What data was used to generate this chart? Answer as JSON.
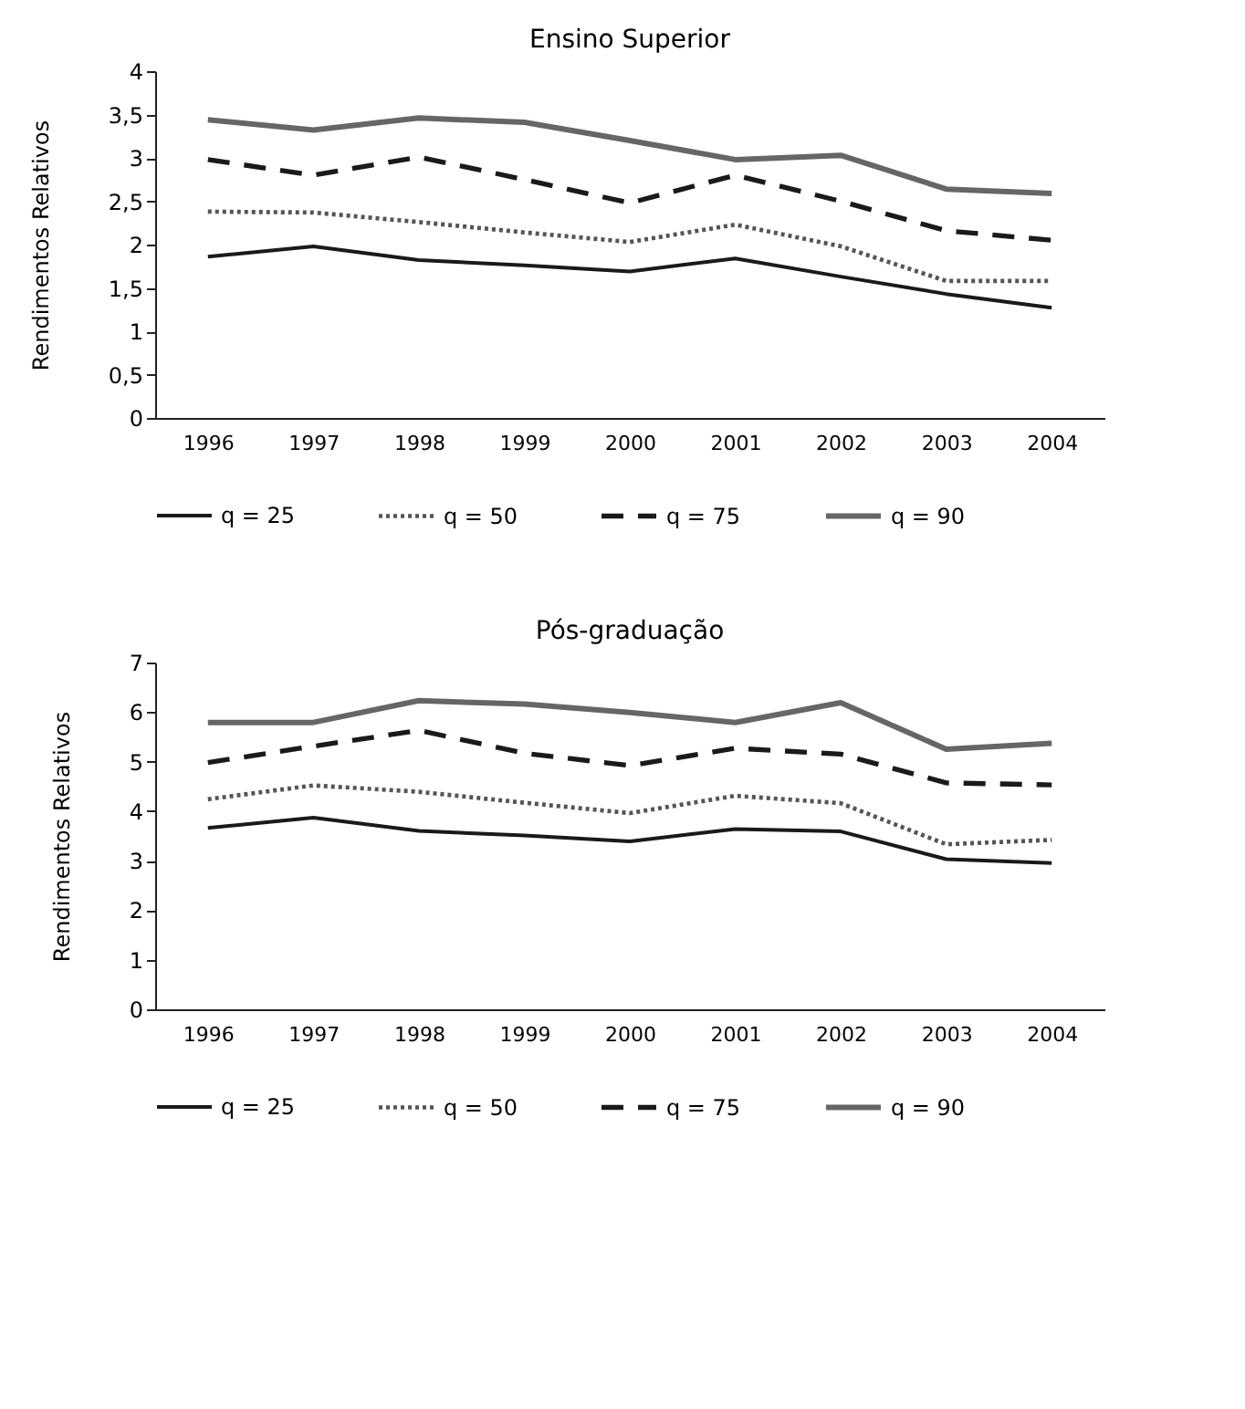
{
  "chart_data": [
    {
      "type": "line",
      "title": "Ensino Superior",
      "ylabel": "Rendimentos Relativos",
      "categories": [
        "1996",
        "1997",
        "1998",
        "1999",
        "2000",
        "2001",
        "2002",
        "2003",
        "2004"
      ],
      "ylim": [
        0,
        4
      ],
      "yticks": [
        0,
        {
          "value": 0.5,
          "label": "0,5"
        },
        1,
        {
          "value": 1.5,
          "label": "1,5"
        },
        2,
        {
          "value": 2.5,
          "label": "2,5"
        },
        3,
        {
          "value": 3.5,
          "label": "3,5"
        },
        4
      ],
      "legend": "bottom",
      "series": [
        {
          "name": "q = 25",
          "color": "#1a1a1a",
          "line_style": "solid",
          "values": [
            1.86,
            1.98,
            1.82,
            1.76,
            1.69,
            1.84,
            1.63,
            1.43,
            1.27
          ]
        },
        {
          "name": "q = 50",
          "color": "#555555",
          "line_style": "dotted",
          "values": [
            2.38,
            2.37,
            2.26,
            2.14,
            2.03,
            2.23,
            1.98,
            1.58,
            1.58
          ]
        },
        {
          "name": "q = 75",
          "color": "#1a1a1a",
          "line_style": "dashed",
          "values": [
            2.98,
            2.8,
            3.01,
            2.75,
            2.48,
            2.8,
            2.5,
            2.16,
            2.05
          ]
        },
        {
          "name": "q = 90",
          "color": "#666666",
          "line_style": "solid",
          "values": [
            3.44,
            3.32,
            3.46,
            3.41,
            3.2,
            2.98,
            3.03,
            2.64,
            2.59
          ]
        }
      ]
    },
    {
      "type": "line",
      "title": "Pós-graduação",
      "ylabel": "Rendimentos Relativos",
      "categories": [
        "1996",
        "1997",
        "1998",
        "1999",
        "2000",
        "2001",
        "2002",
        "2003",
        "2004"
      ],
      "ylim": [
        0,
        7
      ],
      "yticks": [
        0,
        1,
        2,
        3,
        4,
        5,
        6,
        7
      ],
      "legend": "bottom",
      "series": [
        {
          "name": "q = 25",
          "color": "#1a1a1a",
          "line_style": "solid",
          "values": [
            3.66,
            3.87,
            3.6,
            3.51,
            3.39,
            3.64,
            3.59,
            3.03,
            2.95
          ]
        },
        {
          "name": "q = 50",
          "color": "#555555",
          "line_style": "dotted",
          "values": [
            4.24,
            4.52,
            4.39,
            4.17,
            3.96,
            4.31,
            4.16,
            3.33,
            3.42
          ]
        },
        {
          "name": "q = 75",
          "color": "#1a1a1a",
          "line_style": "dashed",
          "values": [
            4.98,
            5.31,
            5.63,
            5.17,
            4.92,
            5.27,
            5.15,
            4.57,
            4.53
          ]
        },
        {
          "name": "q = 90",
          "color": "#666666",
          "line_style": "solid",
          "values": [
            5.79,
            5.79,
            6.23,
            6.16,
            5.99,
            5.79,
            6.19,
            5.25,
            5.37
          ]
        }
      ]
    }
  ]
}
